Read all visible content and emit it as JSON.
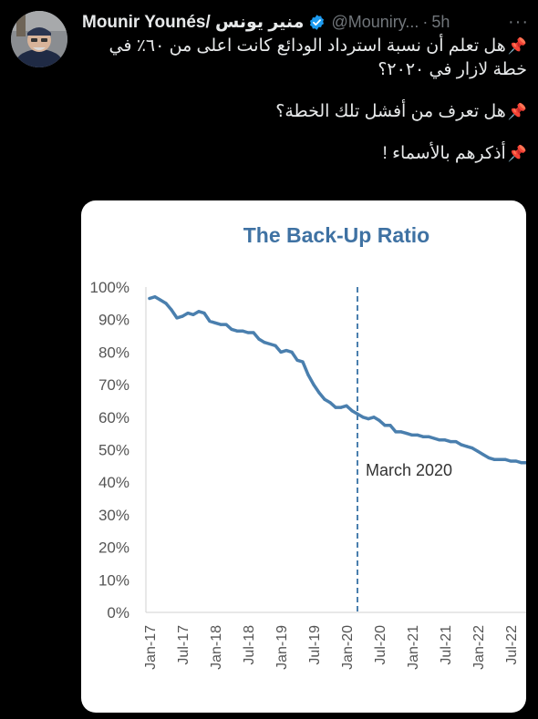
{
  "tweet": {
    "display_name": "Mounir Younés/ منير يونس",
    "handle": "@Mouniry...",
    "separator": "·",
    "time": "5h",
    "more_label": "···",
    "lines": [
      "هل تعلم أن نسبة استرداد الودائع كانت اعلى من ٦٠٪ في خطة لازار في ٢٠٢٠؟",
      "هل تعرف من أفشل تلك الخطة؟",
      "أذكرهم بالأسماء !"
    ],
    "pin_icon": "📌"
  },
  "colors": {
    "line": "#4a7fae",
    "title": "#3f72a3",
    "verified": "#1d9bf0"
  },
  "chart_data": {
    "type": "line",
    "title": "The Back-Up Ratio",
    "xlabel": "",
    "ylabel": "",
    "ylim": [
      0,
      100
    ],
    "y_ticks": [
      "0%",
      "10%",
      "20%",
      "30%",
      "40%",
      "50%",
      "60%",
      "70%",
      "80%",
      "90%",
      "100%"
    ],
    "x_ticks": [
      "Jan-17",
      "Jul-17",
      "Jan-18",
      "Jul-18",
      "Jan-19",
      "Jul-19",
      "Jan-20",
      "Jul-20",
      "Jan-21",
      "Jul-21",
      "Jan-22",
      "Jul-22"
    ],
    "annotation": {
      "label": "March 2020",
      "x": "2020-03"
    },
    "series": [
      {
        "x": [
          "2017-01",
          "2017-02",
          "2017-03",
          "2017-04",
          "2017-05",
          "2017-06",
          "2017-07",
          "2017-08",
          "2017-09",
          "2017-10",
          "2017-11",
          "2017-12",
          "2018-01",
          "2018-02",
          "2018-03",
          "2018-04",
          "2018-05",
          "2018-06",
          "2018-07",
          "2018-08",
          "2018-09",
          "2018-10",
          "2018-11",
          "2018-12",
          "2019-01",
          "2019-02",
          "2019-03",
          "2019-04",
          "2019-05",
          "2019-06",
          "2019-07",
          "2019-08",
          "2019-09",
          "2019-10",
          "2019-11",
          "2019-12",
          "2020-01",
          "2020-02",
          "2020-03",
          "2020-04",
          "2020-05",
          "2020-06",
          "2020-07",
          "2020-08",
          "2020-09",
          "2020-10",
          "2020-11",
          "2020-12",
          "2021-01",
          "2021-02",
          "2021-03",
          "2021-04",
          "2021-05",
          "2021-06",
          "2021-07",
          "2021-08",
          "2021-09",
          "2021-10",
          "2021-11",
          "2021-12",
          "2022-01",
          "2022-02",
          "2022-03",
          "2022-04",
          "2022-05",
          "2022-06",
          "2022-07",
          "2022-08",
          "2022-09",
          "2022-10",
          "2022-11",
          "2022-12"
        ],
        "values": [
          96.5,
          97,
          96,
          95,
          93,
          90.5,
          91,
          92,
          91.5,
          92.5,
          92,
          89.5,
          89,
          88.5,
          88.5,
          87,
          86.5,
          86.5,
          86,
          86,
          84,
          83,
          82.5,
          82,
          80,
          80.5,
          80,
          77.5,
          77,
          73,
          70,
          67.5,
          65.5,
          64.5,
          63,
          63,
          63.5,
          62,
          61,
          60,
          59.5,
          60,
          59,
          57.5,
          57.5,
          55.5,
          55.5,
          55,
          54.5,
          54.5,
          54,
          54,
          53.5,
          53,
          53,
          52.5,
          52.5,
          51.5,
          51,
          50.5,
          49.5,
          48.5,
          47.5,
          47,
          47,
          47,
          46.5,
          46.5,
          46,
          46,
          45.5,
          45.5
        ]
      }
    ]
  }
}
